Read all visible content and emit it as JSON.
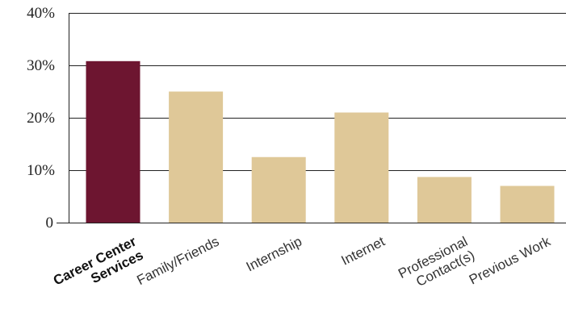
{
  "chart_data": {
    "type": "bar",
    "title": "",
    "xlabel": "",
    "ylabel": "",
    "categories": [
      [
        "Career Center",
        "Services"
      ],
      [
        "Family/Friends"
      ],
      [
        "Internship"
      ],
      [
        "Internet"
      ],
      [
        "Professional",
        "Contact(s)"
      ],
      [
        "Previous Work"
      ]
    ],
    "values": [
      30.8,
      25.0,
      12.5,
      21.0,
      8.7,
      7.0
    ],
    "ylim": [
      0,
      40
    ],
    "yticks": [
      {
        "value": 0,
        "label": "0"
      },
      {
        "value": 10,
        "label": "10%"
      },
      {
        "value": 20,
        "label": "20%"
      },
      {
        "value": 30,
        "label": "30%"
      },
      {
        "value": 40,
        "label": "40%"
      }
    ],
    "grid": true,
    "highlight_index": 0,
    "colors": {
      "highlight": "#6d1530",
      "bar": "#dfc898",
      "grid": "#222222"
    }
  }
}
